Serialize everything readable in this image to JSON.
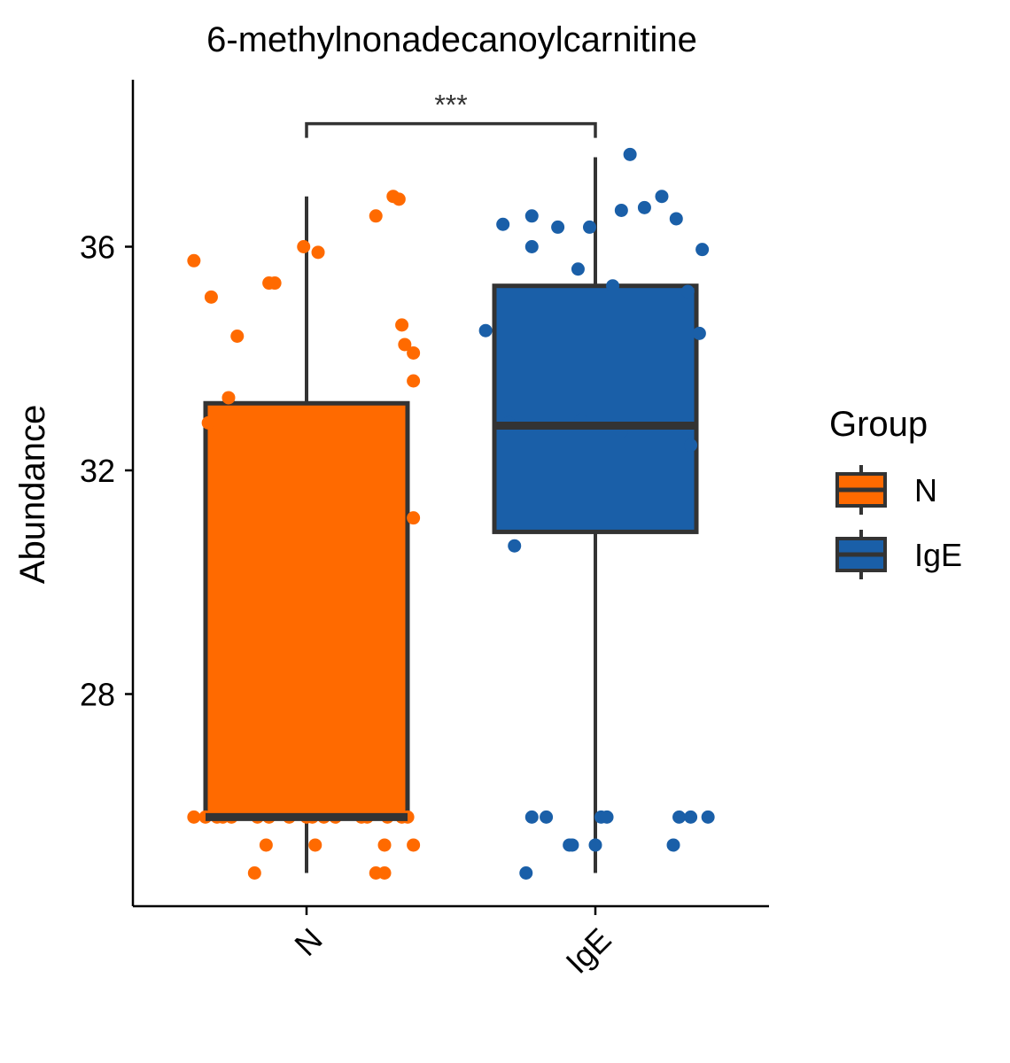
{
  "chart_data": {
    "type": "box",
    "title": "6-methylnonadecanoylcarnitine",
    "xlabel": "",
    "ylabel": "Abundance",
    "ylim": [
      24.0,
      38.8
    ],
    "yticks": [
      28,
      32,
      36
    ],
    "categories": [
      "N",
      "IgE"
    ],
    "legend": {
      "title": "Group",
      "position": "right",
      "entries": [
        "N",
        "IgE"
      ]
    },
    "colors": {
      "N": "#ff6a00",
      "IgE": "#1a5fa8",
      "outline": "#333333"
    },
    "boxes": [
      {
        "group": "N",
        "whisker_low": 24.8,
        "q1": 25.8,
        "median": 25.8,
        "q3": 33.2,
        "whisker_high": 36.9
      },
      {
        "group": "IgE",
        "whisker_low": 24.8,
        "q1": 30.9,
        "median": 32.8,
        "q3": 35.3,
        "whisker_high": 37.6
      }
    ],
    "significance": {
      "label": "***",
      "between": [
        "N",
        "IgE"
      ],
      "y": 38.2
    },
    "points": {
      "N": [
        [
          -0.39,
          35.75
        ],
        [
          -0.33,
          35.1
        ],
        [
          -0.24,
          34.4
        ],
        [
          -0.11,
          35.35
        ],
        [
          -0.13,
          35.35
        ],
        [
          -0.01,
          36.0
        ],
        [
          0.04,
          35.9
        ],
        [
          0.24,
          36.55
        ],
        [
          0.3,
          36.9
        ],
        [
          0.32,
          36.85
        ],
        [
          0.33,
          34.6
        ],
        [
          0.34,
          34.25
        ],
        [
          0.37,
          34.1
        ],
        [
          0.37,
          33.6
        ],
        [
          0.37,
          31.15
        ],
        [
          -0.27,
          33.3
        ],
        [
          -0.34,
          32.85
        ],
        [
          -0.28,
          32.7
        ],
        [
          -0.39,
          25.8
        ],
        [
          -0.35,
          25.8
        ],
        [
          -0.31,
          25.8
        ],
        [
          -0.29,
          25.8
        ],
        [
          -0.26,
          25.8
        ],
        [
          -0.17,
          25.8
        ],
        [
          -0.13,
          25.8
        ],
        [
          -0.06,
          25.8
        ],
        [
          0.0,
          25.8
        ],
        [
          0.02,
          25.8
        ],
        [
          0.06,
          25.8
        ],
        [
          0.1,
          25.8
        ],
        [
          0.19,
          25.8
        ],
        [
          0.21,
          25.8
        ],
        [
          0.28,
          25.8
        ],
        [
          0.33,
          25.8
        ],
        [
          0.35,
          25.8
        ],
        [
          -0.14,
          25.3
        ],
        [
          0.03,
          25.3
        ],
        [
          0.27,
          25.3
        ],
        [
          0.37,
          25.3
        ],
        [
          -0.18,
          24.8
        ],
        [
          0.24,
          24.8
        ],
        [
          0.27,
          24.8
        ]
      ],
      "IgE": [
        [
          -0.32,
          36.4
        ],
        [
          -0.22,
          36.55
        ],
        [
          -0.13,
          36.35
        ],
        [
          -0.02,
          36.35
        ],
        [
          0.09,
          36.65
        ],
        [
          0.17,
          36.7
        ],
        [
          0.23,
          36.9
        ],
        [
          0.28,
          36.5
        ],
        [
          0.37,
          35.95
        ],
        [
          0.12,
          37.65
        ],
        [
          -0.22,
          36.0
        ],
        [
          -0.06,
          35.6
        ],
        [
          0.06,
          35.3
        ],
        [
          0.32,
          35.2
        ],
        [
          -0.38,
          34.5
        ],
        [
          0.36,
          34.45
        ],
        [
          -0.3,
          32.85
        ],
        [
          -0.05,
          32.9
        ],
        [
          0.09,
          32.7
        ],
        [
          0.33,
          32.45
        ],
        [
          -0.28,
          30.65
        ],
        [
          -0.22,
          25.8
        ],
        [
          -0.17,
          25.8
        ],
        [
          0.02,
          25.8
        ],
        [
          0.04,
          25.8
        ],
        [
          0.29,
          25.8
        ],
        [
          0.33,
          25.8
        ],
        [
          0.39,
          25.8
        ],
        [
          -0.09,
          25.3
        ],
        [
          -0.08,
          25.3
        ],
        [
          0.0,
          25.3
        ],
        [
          0.27,
          25.3
        ],
        [
          -0.24,
          24.8
        ]
      ]
    }
  }
}
